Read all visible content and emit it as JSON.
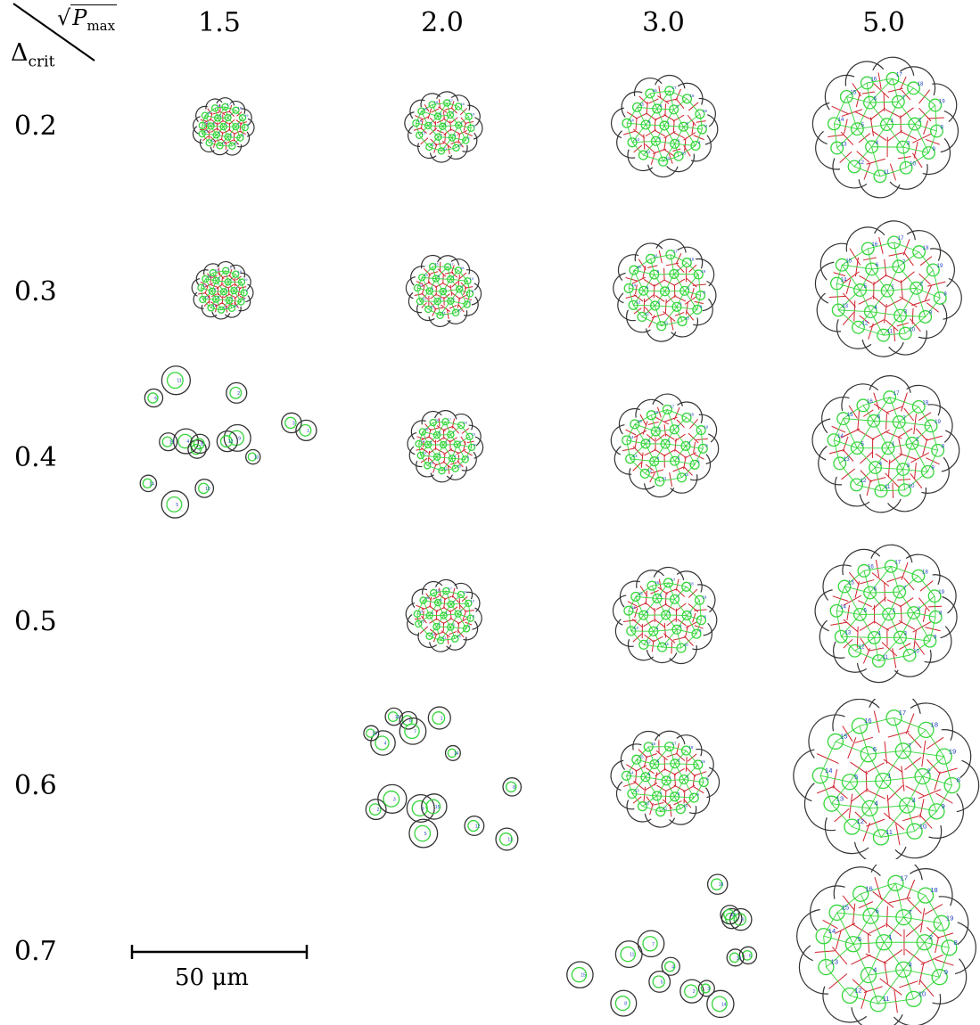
{
  "header": {
    "row_axis_symbol": "Δ",
    "row_axis_sub": "crit",
    "col_axis_symbol": "P",
    "col_axis_sub": "max"
  },
  "columns": [
    "1.5",
    "2.0",
    "3.0",
    "5.0"
  ],
  "rows": [
    "0.2",
    "0.3",
    "0.4",
    "0.5",
    "0.6",
    "0.7"
  ],
  "scale_bar": {
    "label": "50 μm"
  },
  "colors": {
    "membrane": "#333333",
    "edges_red": "#d0202a",
    "cells_green": "#35d63a",
    "labels_blue": "#2040c0"
  },
  "panels": [
    {
      "row": "0.2",
      "col": "1.5",
      "state": "cluster",
      "size": "small"
    },
    {
      "row": "0.2",
      "col": "2.0",
      "state": "cluster",
      "size": "small-medium"
    },
    {
      "row": "0.2",
      "col": "3.0",
      "state": "cluster",
      "size": "medium"
    },
    {
      "row": "0.2",
      "col": "5.0",
      "state": "cluster",
      "size": "large"
    },
    {
      "row": "0.3",
      "col": "1.5",
      "state": "cluster",
      "size": "small"
    },
    {
      "row": "0.3",
      "col": "2.0",
      "state": "cluster",
      "size": "small-medium"
    },
    {
      "row": "0.3",
      "col": "3.0",
      "state": "cluster",
      "size": "medium"
    },
    {
      "row": "0.3",
      "col": "5.0",
      "state": "cluster",
      "size": "large"
    },
    {
      "row": "0.4",
      "col": "1.5",
      "state": "dispersed",
      "size": "small"
    },
    {
      "row": "0.4",
      "col": "2.0",
      "state": "cluster",
      "size": "small-medium"
    },
    {
      "row": "0.4",
      "col": "3.0",
      "state": "cluster",
      "size": "medium"
    },
    {
      "row": "0.4",
      "col": "5.0",
      "state": "cluster",
      "size": "large"
    },
    {
      "row": "0.5",
      "col": "1.5",
      "state": "empty"
    },
    {
      "row": "0.5",
      "col": "2.0",
      "state": "cluster",
      "size": "small-medium"
    },
    {
      "row": "0.5",
      "col": "3.0",
      "state": "cluster",
      "size": "medium"
    },
    {
      "row": "0.5",
      "col": "5.0",
      "state": "cluster",
      "size": "large"
    },
    {
      "row": "0.6",
      "col": "1.5",
      "state": "empty"
    },
    {
      "row": "0.6",
      "col": "2.0",
      "state": "dispersed",
      "size": "medium"
    },
    {
      "row": "0.6",
      "col": "3.0",
      "state": "cluster",
      "size": "medium"
    },
    {
      "row": "0.6",
      "col": "5.0",
      "state": "cluster",
      "size": "xlarge"
    },
    {
      "row": "0.7",
      "col": "1.5",
      "state": "empty"
    },
    {
      "row": "0.7",
      "col": "2.0",
      "state": "empty"
    },
    {
      "row": "0.7",
      "col": "3.0",
      "state": "dispersed",
      "size": "medium"
    },
    {
      "row": "0.7",
      "col": "5.0",
      "state": "cluster",
      "size": "xlarge"
    }
  ]
}
